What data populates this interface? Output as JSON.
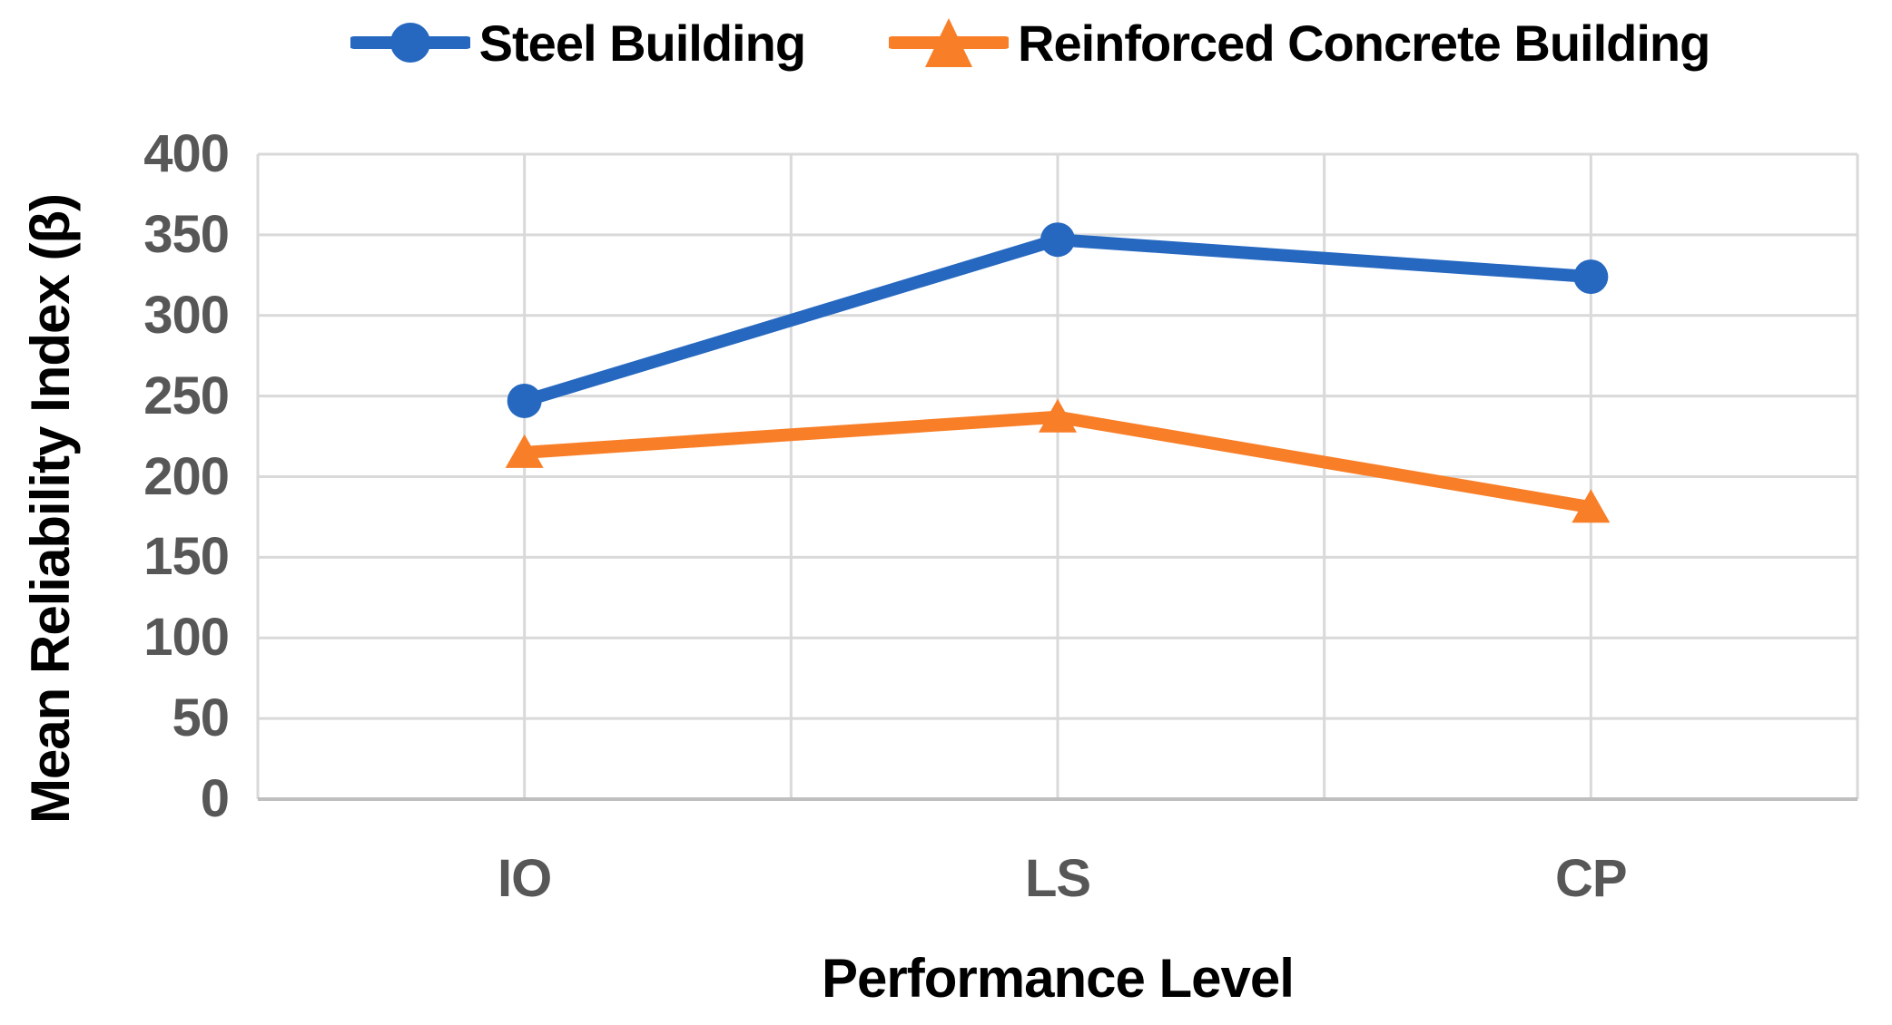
{
  "chart_data": {
    "type": "line",
    "categories": [
      "IO",
      "LS",
      "CP"
    ],
    "series": [
      {
        "name": "Steel Building",
        "color": "#2668C0",
        "marker": "circle",
        "values": [
          247,
          347,
          324
        ]
      },
      {
        "name": "Reinforced Concrete Building",
        "color": "#F87E28",
        "marker": "triangle",
        "values": [
          215,
          237,
          181
        ]
      }
    ],
    "xlabel": "Performance Level",
    "ylabel": "Mean Reliability Index (β)",
    "ylim": [
      0,
      400
    ],
    "ytick_step": 50,
    "yticks": [
      0,
      50,
      100,
      150,
      200,
      250,
      300,
      350,
      400
    ],
    "legend_position": "top-center",
    "grid": {
      "horizontal": true,
      "vertical": true,
      "color": "#D9D9D9",
      "axis_line_color": "#BFBFBF"
    },
    "tick_label_color": "#575757",
    "text_color": "#000000",
    "background_color": "#FFFFFF"
  }
}
